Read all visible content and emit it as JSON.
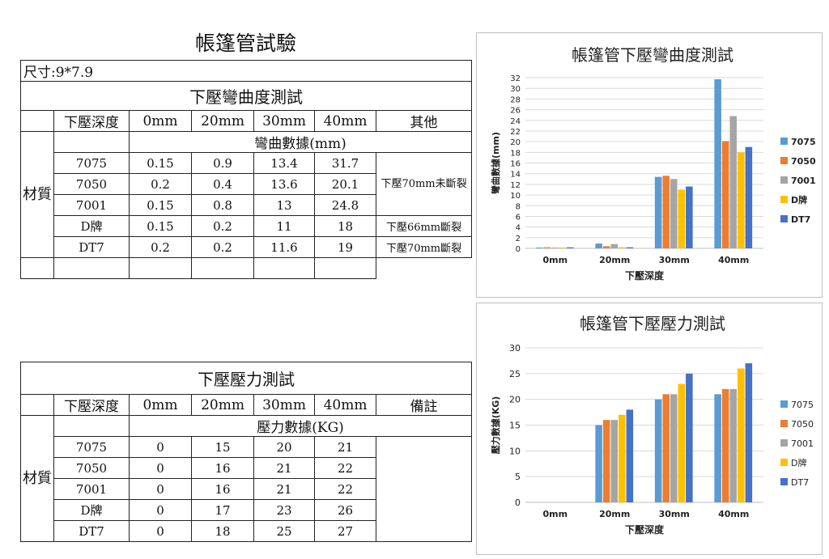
{
  "page": {
    "title": "帳篷管試驗"
  },
  "bend_table": {
    "size": "尺寸:9*7.9",
    "title": "下壓彎曲度測試",
    "headers": [
      "下壓深度",
      "0mm",
      "20mm",
      "30mm",
      "40mm",
      "其他"
    ],
    "sub_header": "彎曲數據(mm)",
    "material_label": "材質",
    "rows": [
      {
        "name": "7075",
        "values": [
          "0.15",
          "0.9",
          "13.4",
          "31.7"
        ]
      },
      {
        "name": "7050",
        "values": [
          "0.2",
          "0.4",
          "13.6",
          "20.1"
        ]
      },
      {
        "name": "7001",
        "values": [
          "0.15",
          "0.8",
          "13",
          "24.8"
        ]
      },
      {
        "name": "D牌",
        "values": [
          "0.15",
          "0.2",
          "11",
          "18"
        ]
      },
      {
        "name": "DT7",
        "values": [
          "0.2",
          "0.2",
          "11.6",
          "19"
        ]
      }
    ],
    "notes": [
      "下壓70mm未斷裂",
      "下壓66mm斷裂",
      "下壓70mm斷裂"
    ]
  },
  "pressure_table": {
    "title": "下壓壓力測試",
    "headers": [
      "下壓深度",
      "0mm",
      "20mm",
      "30mm",
      "40mm",
      "備註"
    ],
    "sub_header": "壓力數據(KG)",
    "material_label": "材質",
    "rows": [
      {
        "name": "7075",
        "values": [
          "0",
          "15",
          "20",
          "21"
        ]
      },
      {
        "name": "7050",
        "values": [
          "0",
          "16",
          "21",
          "22"
        ]
      },
      {
        "name": "7001",
        "values": [
          "0",
          "16",
          "21",
          "22"
        ]
      },
      {
        "name": "D牌",
        "values": [
          "0",
          "17",
          "23",
          "26"
        ]
      },
      {
        "name": "DT7",
        "values": [
          "0",
          "18",
          "25",
          "27"
        ]
      }
    ]
  },
  "chart_data": [
    {
      "type": "bar",
      "title": "帳篷管下壓彎曲度測試",
      "xlabel": "下壓深度",
      "ylabel": "彎曲數據(mm)",
      "categories": [
        "0mm",
        "20mm",
        "30mm",
        "40mm"
      ],
      "ylim": [
        0,
        32
      ],
      "ytick_step": 2,
      "grid": true,
      "legend": "right",
      "series": [
        {
          "name": "7075",
          "color": "#5b9bd5",
          "values": [
            0.15,
            0.9,
            13.4,
            31.7
          ]
        },
        {
          "name": "7050",
          "color": "#ed7d31",
          "values": [
            0.2,
            0.4,
            13.6,
            20.1
          ]
        },
        {
          "name": "7001",
          "color": "#a5a5a5",
          "values": [
            0.15,
            0.8,
            13,
            24.8
          ]
        },
        {
          "name": "D牌",
          "color": "#ffc000",
          "values": [
            0.15,
            0.2,
            11,
            18
          ]
        },
        {
          "name": "DT7",
          "color": "#4472c4",
          "values": [
            0.2,
            0.2,
            11.6,
            19
          ]
        }
      ]
    },
    {
      "type": "bar",
      "title": "帳篷管下壓壓力測試",
      "xlabel": "下壓深度",
      "ylabel": "壓力數據(KG)",
      "categories": [
        "0mm",
        "20mm",
        "30mm",
        "40mm"
      ],
      "ylim": [
        0,
        30
      ],
      "ytick_step": 5,
      "grid": true,
      "legend": "right",
      "series": [
        {
          "name": "7075",
          "color": "#5b9bd5",
          "values": [
            0,
            15,
            20,
            21
          ]
        },
        {
          "name": "7050",
          "color": "#ed7d31",
          "values": [
            0,
            16,
            21,
            22
          ]
        },
        {
          "name": "7001",
          "color": "#a5a5a5",
          "values": [
            0,
            16,
            21,
            22
          ]
        },
        {
          "name": "D牌",
          "color": "#ffc000",
          "values": [
            0,
            17,
            23,
            26
          ]
        },
        {
          "name": "DT7",
          "color": "#4472c4",
          "values": [
            0,
            18,
            25,
            27
          ]
        }
      ]
    }
  ]
}
